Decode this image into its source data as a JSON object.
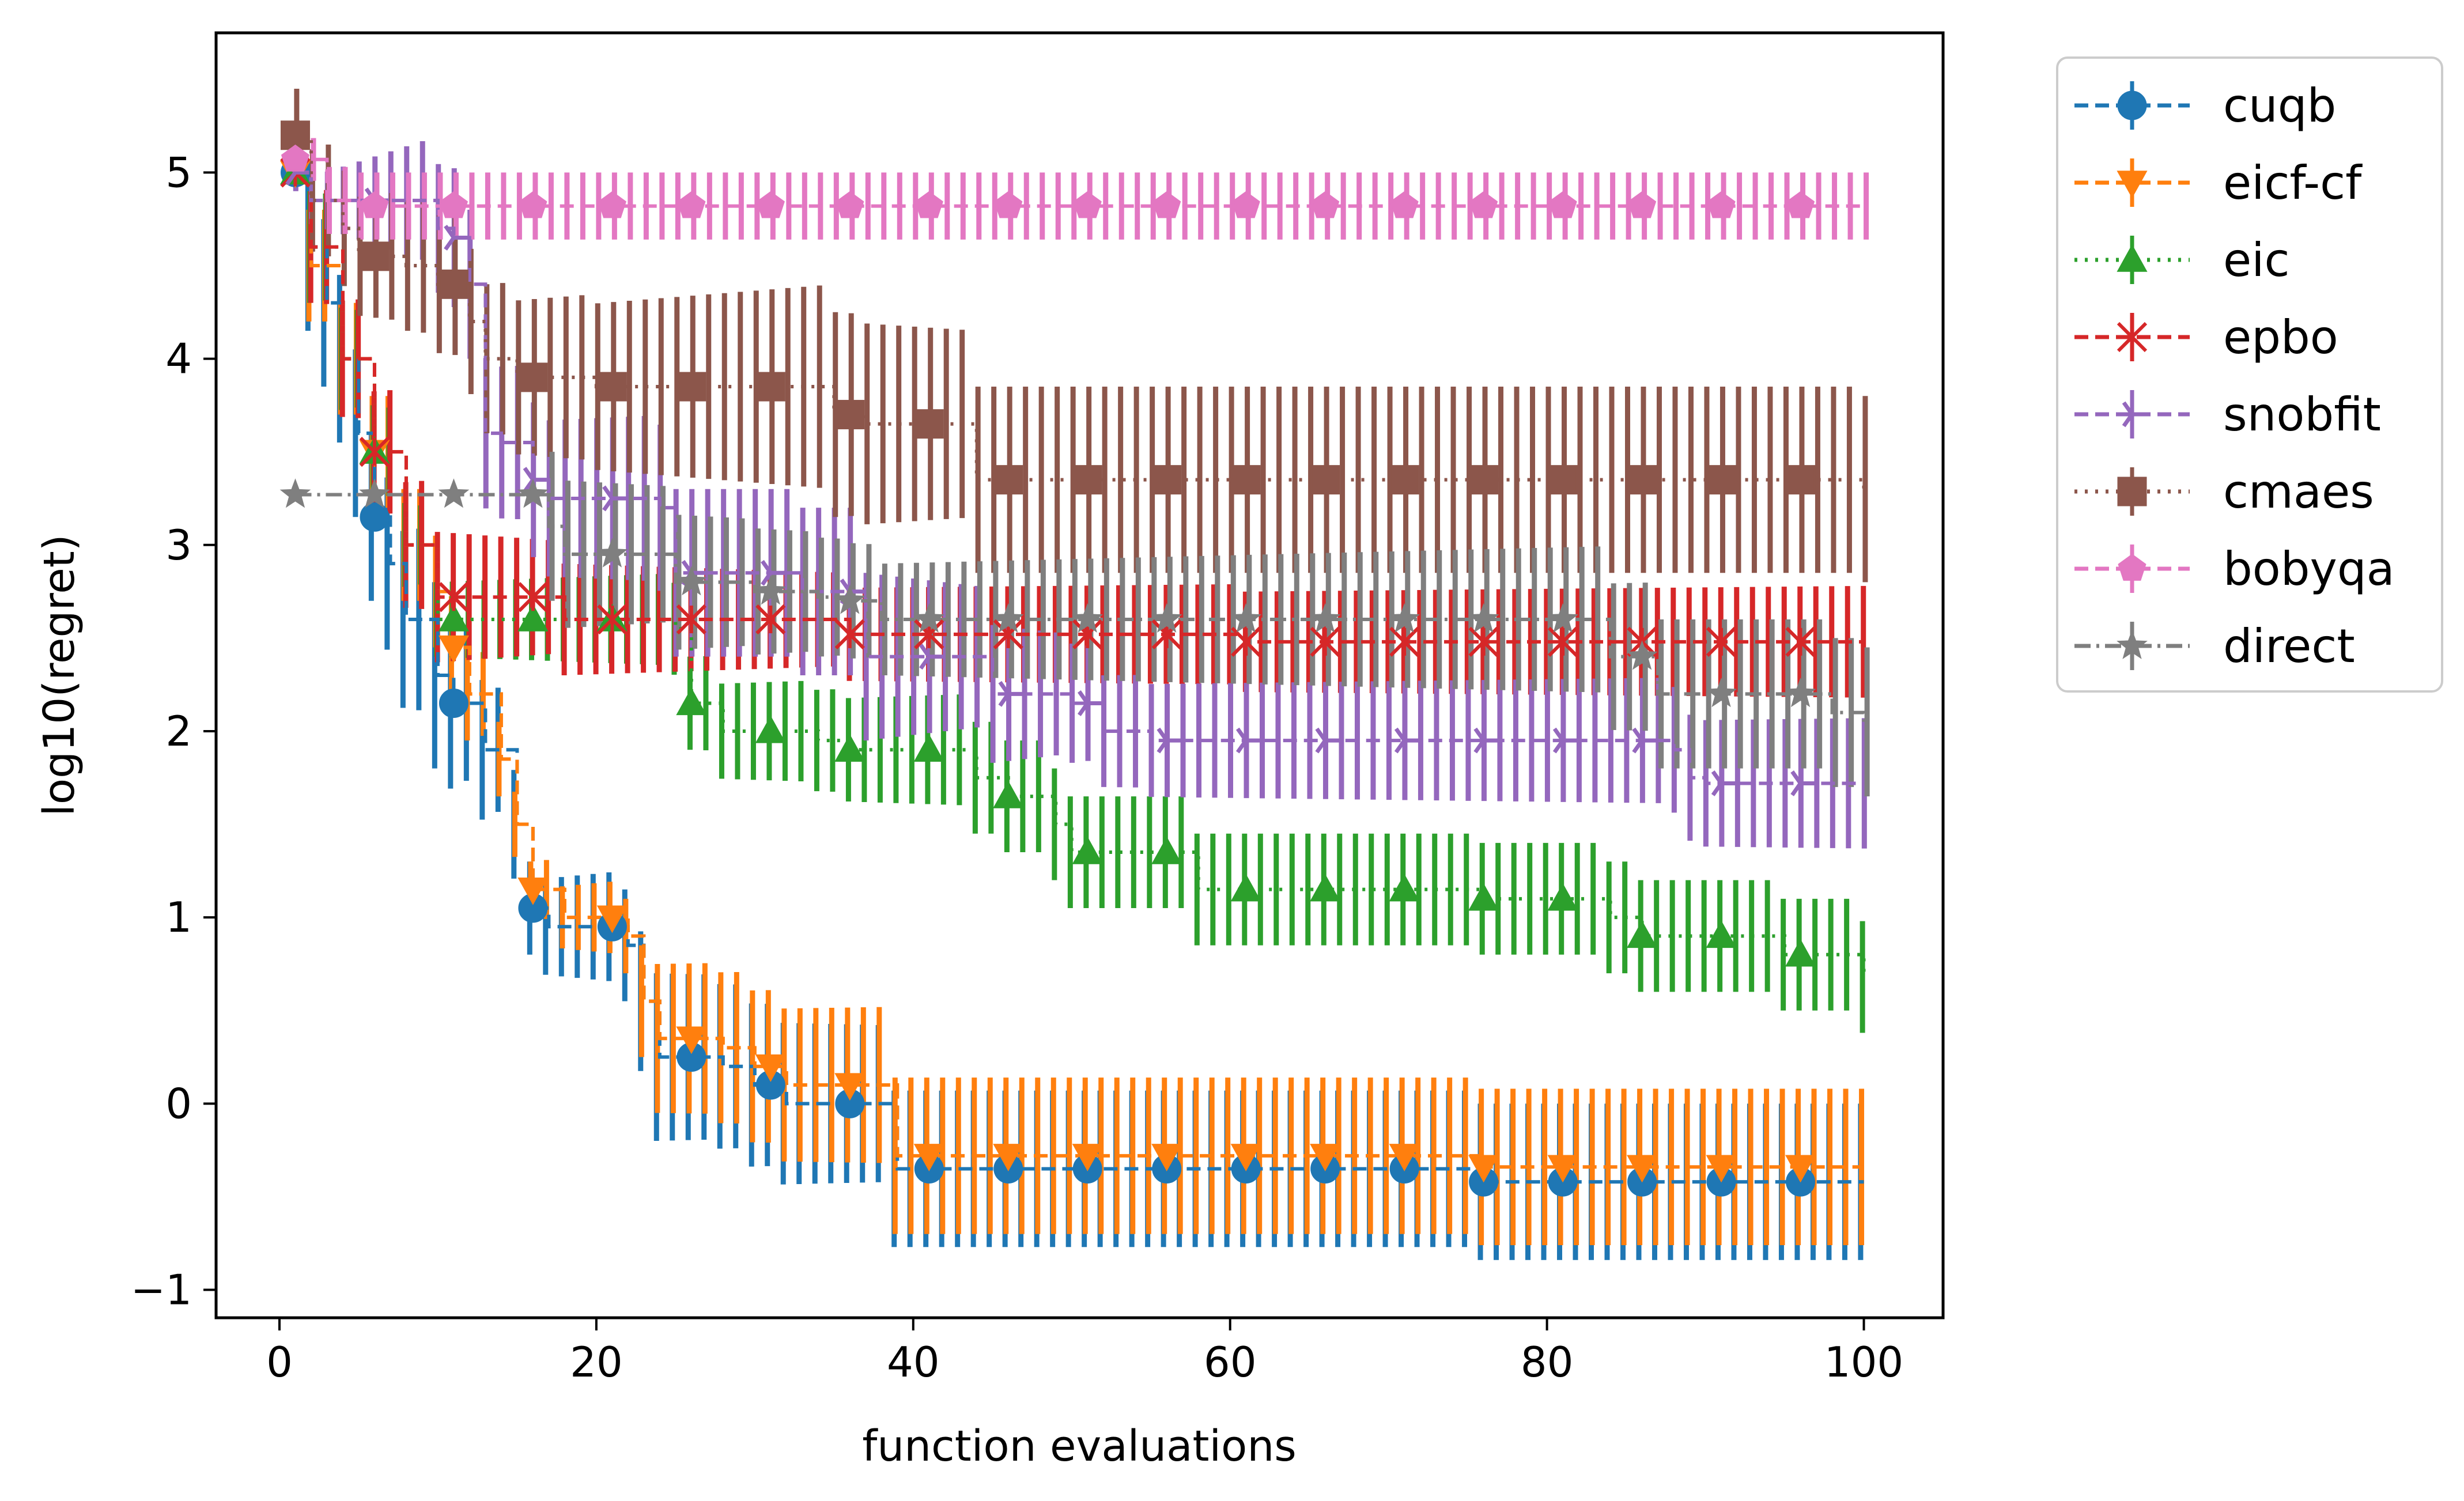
{
  "chart_data": {
    "type": "line",
    "title": "",
    "xlabel": "function evaluations",
    "ylabel": "log10(regret)",
    "xlim": [
      -4,
      105
    ],
    "ylim": [
      -1.15,
      5.75
    ],
    "xticks": [
      0,
      20,
      40,
      60,
      80,
      100
    ],
    "yticks": [
      -1,
      0,
      1,
      2,
      3,
      4,
      5
    ],
    "xtick_labels": [
      "0",
      "20",
      "40",
      "60",
      "80",
      "100"
    ],
    "ytick_labels": [
      "−1",
      "0",
      "1",
      "2",
      "3",
      "4",
      "5"
    ],
    "grid": false,
    "legend_position": "outside-top-right",
    "marker_x": [
      1,
      6,
      11,
      16,
      21,
      26,
      31,
      36,
      41,
      46,
      51,
      56,
      61,
      66,
      71,
      76,
      81,
      86,
      91,
      96
    ],
    "series": [
      {
        "name": "cuqb",
        "color": "#1f77b4",
        "marker": "circle",
        "linestyle": "dashed",
        "steps": [
          [
            1,
            5.0
          ],
          [
            2,
            4.6
          ],
          [
            3,
            4.3
          ],
          [
            4,
            4.0
          ],
          [
            5,
            3.6
          ],
          [
            6,
            3.15
          ],
          [
            7,
            2.9
          ],
          [
            8,
            2.6
          ],
          [
            10,
            2.3
          ],
          [
            11,
            2.15
          ],
          [
            13,
            1.9
          ],
          [
            15,
            1.5
          ],
          [
            16,
            1.05
          ],
          [
            17,
            0.95
          ],
          [
            22,
            0.85
          ],
          [
            23,
            0.55
          ],
          [
            24,
            0.25
          ],
          [
            28,
            0.2
          ],
          [
            30,
            0.1
          ],
          [
            32,
            0.0
          ],
          [
            39,
            -0.35
          ],
          [
            76,
            -0.42
          ],
          [
            100,
            -0.42
          ]
        ],
        "err": [
          [
            1,
            0.05
          ],
          [
            2,
            0.45
          ],
          [
            6,
            0.45
          ],
          [
            10,
            0.5
          ],
          [
            16,
            0.25
          ],
          [
            22,
            0.3
          ],
          [
            24,
            0.45
          ],
          [
            39,
            0.42
          ],
          [
            76,
            0.42
          ],
          [
            100,
            0.42
          ]
        ]
      },
      {
        "name": "eicf-cf",
        "color": "#ff7f0e",
        "marker": "triangle-down",
        "linestyle": "dashed",
        "steps": [
          [
            1,
            5.0
          ],
          [
            2,
            4.5
          ],
          [
            4,
            4.0
          ],
          [
            6,
            3.5
          ],
          [
            8,
            3.0
          ],
          [
            10,
            2.75
          ],
          [
            11,
            2.45
          ],
          [
            12,
            2.2
          ],
          [
            14,
            1.85
          ],
          [
            15,
            1.5
          ],
          [
            16,
            1.15
          ],
          [
            18,
            1.0
          ],
          [
            22,
            0.9
          ],
          [
            23,
            0.55
          ],
          [
            24,
            0.35
          ],
          [
            28,
            0.3
          ],
          [
            30,
            0.2
          ],
          [
            32,
            0.1
          ],
          [
            39,
            -0.28
          ],
          [
            76,
            -0.34
          ],
          [
            100,
            -0.34
          ]
        ],
        "err": [
          [
            1,
            0.05
          ],
          [
            2,
            0.3
          ],
          [
            10,
            0.3
          ],
          [
            16,
            0.15
          ],
          [
            22,
            0.2
          ],
          [
            24,
            0.4
          ],
          [
            39,
            0.42
          ],
          [
            100,
            0.42
          ]
        ]
      },
      {
        "name": "eic",
        "color": "#2ca02c",
        "marker": "triangle-up",
        "linestyle": "dotted",
        "steps": [
          [
            1,
            5.0
          ],
          [
            2,
            4.6
          ],
          [
            4,
            4.0
          ],
          [
            6,
            3.5
          ],
          [
            8,
            3.0
          ],
          [
            10,
            2.6
          ],
          [
            25,
            2.55
          ],
          [
            26,
            2.15
          ],
          [
            28,
            2.0
          ],
          [
            34,
            1.95
          ],
          [
            36,
            1.9
          ],
          [
            44,
            1.75
          ],
          [
            46,
            1.65
          ],
          [
            49,
            1.5
          ],
          [
            50,
            1.35
          ],
          [
            55,
            1.35
          ],
          [
            58,
            1.15
          ],
          [
            76,
            1.1
          ],
          [
            84,
            1.0
          ],
          [
            86,
            0.9
          ],
          [
            95,
            0.8
          ],
          [
            100,
            0.68
          ]
        ],
        "err": [
          [
            1,
            0.05
          ],
          [
            2,
            0.3
          ],
          [
            10,
            0.2
          ],
          [
            26,
            0.25
          ],
          [
            44,
            0.3
          ],
          [
            86,
            0.3
          ],
          [
            100,
            0.3
          ]
        ]
      },
      {
        "name": "epbo",
        "color": "#d62728",
        "marker": "x",
        "linestyle": "dashed",
        "steps": [
          [
            1,
            5.0
          ],
          [
            2,
            4.6
          ],
          [
            4,
            4.0
          ],
          [
            6,
            3.5
          ],
          [
            8,
            3.0
          ],
          [
            10,
            2.72
          ],
          [
            17,
            2.72
          ],
          [
            18,
            2.6
          ],
          [
            34,
            2.6
          ],
          [
            36,
            2.52
          ],
          [
            59,
            2.52
          ],
          [
            61,
            2.48
          ],
          [
            100,
            2.48
          ]
        ],
        "err": [
          [
            1,
            0.05
          ],
          [
            2,
            0.3
          ],
          [
            10,
            0.35
          ],
          [
            18,
            0.3
          ],
          [
            36,
            0.25
          ],
          [
            100,
            0.3
          ]
        ]
      },
      {
        "name": "snobfit",
        "color": "#9467bd",
        "marker": "tri-right",
        "linestyle": "dashed",
        "steps": [
          [
            1,
            5.0
          ],
          [
            2,
            4.85
          ],
          [
            10,
            4.7
          ],
          [
            11,
            4.65
          ],
          [
            12,
            4.4
          ],
          [
            13,
            3.6
          ],
          [
            14,
            3.55
          ],
          [
            16,
            3.35
          ],
          [
            17,
            3.25
          ],
          [
            24,
            3.2
          ],
          [
            25,
            2.85
          ],
          [
            33,
            2.75
          ],
          [
            37,
            2.4
          ],
          [
            44,
            2.4
          ],
          [
            45,
            2.2
          ],
          [
            50,
            2.15
          ],
          [
            52,
            2.0
          ],
          [
            55,
            1.95
          ],
          [
            88,
            1.9
          ],
          [
            89,
            1.75
          ],
          [
            90,
            1.72
          ],
          [
            100,
            1.72
          ]
        ],
        "err": [
          [
            1,
            0.1
          ],
          [
            12,
            0.4
          ],
          [
            25,
            0.45
          ],
          [
            37,
            0.45
          ],
          [
            52,
            0.3
          ],
          [
            100,
            0.35
          ]
        ]
      },
      {
        "name": "cmaes",
        "color": "#8c564b",
        "marker": "square",
        "linestyle": "dotted",
        "steps": [
          [
            1,
            5.2
          ],
          [
            2,
            4.85
          ],
          [
            4,
            4.7
          ],
          [
            5,
            4.55
          ],
          [
            8,
            4.5
          ],
          [
            10,
            4.4
          ],
          [
            12,
            4.2
          ],
          [
            13,
            4.0
          ],
          [
            15,
            3.9
          ],
          [
            20,
            3.85
          ],
          [
            33,
            3.85
          ],
          [
            35,
            3.7
          ],
          [
            37,
            3.65
          ],
          [
            42,
            3.65
          ],
          [
            44,
            3.35
          ],
          [
            100,
            3.3
          ]
        ],
        "err": [
          [
            1,
            0.25
          ],
          [
            3,
            0.3
          ],
          [
            13,
            0.4
          ],
          [
            35,
            0.55
          ],
          [
            44,
            0.5
          ],
          [
            100,
            0.5
          ]
        ]
      },
      {
        "name": "bobyqa",
        "color": "#e377c2",
        "marker": "pentagon",
        "linestyle": "dashed",
        "steps": [
          [
            1,
            5.07
          ],
          [
            3,
            4.85
          ],
          [
            5,
            4.82
          ],
          [
            100,
            4.82
          ]
        ],
        "err": [
          [
            1,
            0.05
          ],
          [
            3,
            0.18
          ],
          [
            100,
            0.18
          ]
        ]
      },
      {
        "name": "direct",
        "color": "#7f7f7f",
        "marker": "star",
        "linestyle": "dashdot",
        "steps": [
          [
            1,
            3.27
          ],
          [
            16,
            3.27
          ],
          [
            17,
            3.1
          ],
          [
            18,
            2.95
          ],
          [
            24,
            2.95
          ],
          [
            25,
            2.8
          ],
          [
            29,
            2.8
          ],
          [
            30,
            2.75
          ],
          [
            34,
            2.72
          ],
          [
            36,
            2.7
          ],
          [
            38,
            2.6
          ],
          [
            82,
            2.6
          ],
          [
            84,
            2.4
          ],
          [
            86,
            2.4
          ],
          [
            87,
            2.2
          ],
          [
            96,
            2.2
          ],
          [
            98,
            2.1
          ],
          [
            100,
            2.05
          ]
        ],
        "err": [
          [
            1,
            0.02
          ],
          [
            16,
            0.02
          ],
          [
            17,
            0.4
          ],
          [
            38,
            0.3
          ],
          [
            87,
            0.4
          ],
          [
            100,
            0.4
          ]
        ]
      }
    ]
  }
}
